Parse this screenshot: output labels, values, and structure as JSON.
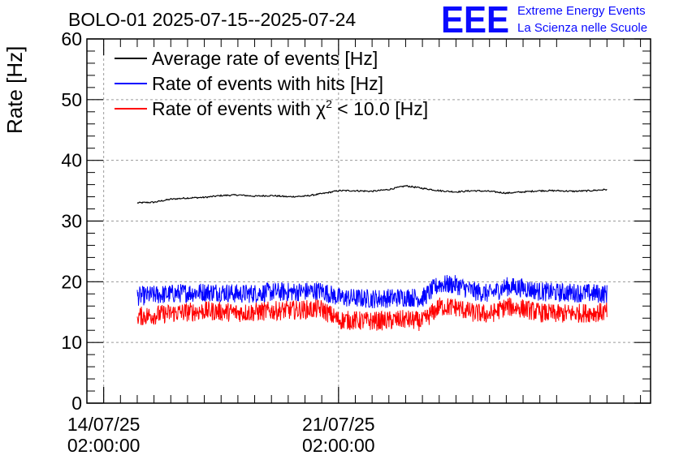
{
  "logo": {
    "mark": "EEE",
    "line1": "Extreme Energy Events",
    "line2": "La Scienza nelle Scuole",
    "color": "#0a0aff"
  },
  "chart_data": {
    "type": "line",
    "title": "BOLO-01 2025-07-15--2025-07-24",
    "ylabel": "Rate [Hz]",
    "xlabel": "",
    "ylim": [
      0,
      60
    ],
    "y_ticks": [
      "0",
      "10",
      "20",
      "30",
      "40",
      "50",
      "60"
    ],
    "x_range_days": [
      -0.5,
      16.3
    ],
    "x_ticks": [
      {
        "value": 0,
        "label1": "14/07/25",
        "label2": "02:00:00"
      },
      {
        "value": 7,
        "label1": "21/07/25",
        "label2": "02:00:00"
      }
    ],
    "grid": true,
    "legend_position": "top-left",
    "legend": [
      {
        "label": "Average rate of events [Hz]",
        "color": "#000000"
      },
      {
        "label": "Rate of events with hits [Hz]",
        "color": "#0000ff"
      },
      {
        "label_prefix": "Rate of events with ",
        "label_symbol": "χ",
        "label_sup": "2",
        "label_suffix": " < 10.0 [Hz]",
        "color": "#ff0000"
      }
    ],
    "series": [
      {
        "name": "Average rate of events [Hz]",
        "color": "#000000",
        "noise": 0.12,
        "x": [
          1.0,
          1.5,
          2.0,
          2.5,
          3.0,
          3.5,
          4.0,
          4.5,
          5.0,
          5.5,
          6.0,
          6.5,
          7.0,
          7.5,
          8.0,
          8.5,
          9.0,
          9.5,
          10.0,
          10.5,
          11.0,
          11.5,
          12.0,
          12.5,
          13.0,
          13.5,
          14.0,
          14.5,
          15.0
        ],
        "y": [
          33.0,
          33.1,
          33.6,
          33.8,
          33.9,
          34.2,
          34.3,
          34.1,
          34.2,
          34.0,
          34.1,
          34.5,
          35.0,
          35.0,
          34.9,
          35.2,
          35.8,
          35.4,
          35.0,
          34.8,
          35.0,
          34.9,
          34.6,
          34.8,
          35.0,
          35.0,
          34.9,
          35.0,
          35.2
        ]
      },
      {
        "name": "Rate of events with hits [Hz]",
        "color": "#0000ff",
        "noise": 1.6,
        "x": [
          1.0,
          1.5,
          2.0,
          2.5,
          3.0,
          3.5,
          4.0,
          4.5,
          5.0,
          5.5,
          6.0,
          6.5,
          7.0,
          7.5,
          8.0,
          8.5,
          9.0,
          9.5,
          10.0,
          10.5,
          11.0,
          11.5,
          12.0,
          12.5,
          13.0,
          13.5,
          14.0,
          14.5,
          15.0
        ],
        "y": [
          17.6,
          17.8,
          18.0,
          18.2,
          18.3,
          18.3,
          18.0,
          18.1,
          18.3,
          18.3,
          18.4,
          18.5,
          17.4,
          17.3,
          17.2,
          17.3,
          17.5,
          17.3,
          19.6,
          19.5,
          18.5,
          18.0,
          19.2,
          19.0,
          18.4,
          18.2,
          18.2,
          18.1,
          18.0
        ]
      },
      {
        "name": "Rate of events with χ2 < 10.0 [Hz]",
        "color": "#ff0000",
        "noise": 1.6,
        "x": [
          1.0,
          1.5,
          2.0,
          2.5,
          3.0,
          3.5,
          4.0,
          4.5,
          5.0,
          5.5,
          6.0,
          6.5,
          7.0,
          7.5,
          8.0,
          8.5,
          9.0,
          9.5,
          10.0,
          10.5,
          11.0,
          11.5,
          12.0,
          12.5,
          13.0,
          13.5,
          14.0,
          14.5,
          15.0
        ],
        "y": [
          14.3,
          14.5,
          14.8,
          15.0,
          15.2,
          15.1,
          14.9,
          15.0,
          15.2,
          15.3,
          15.4,
          15.5,
          13.7,
          13.6,
          13.5,
          13.6,
          13.8,
          13.4,
          15.9,
          15.8,
          14.9,
          14.6,
          15.9,
          15.6,
          14.9,
          14.7,
          14.8,
          14.9,
          15.0
        ]
      }
    ]
  }
}
